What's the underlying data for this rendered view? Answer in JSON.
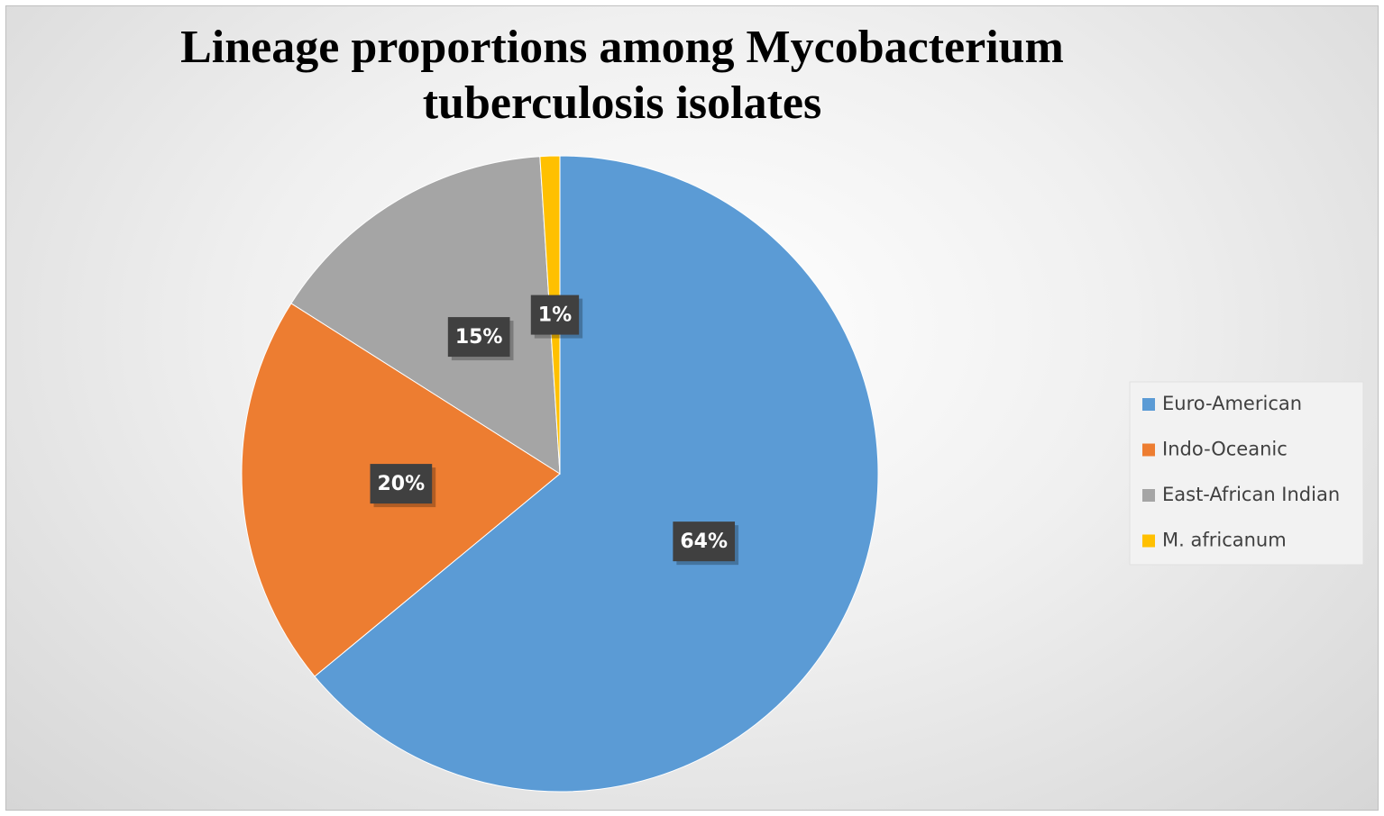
{
  "chart_data": {
    "type": "pie",
    "title": "Lineage proportions among Mycobacterium tuberculosis isolates",
    "categories": [
      "Euro-American",
      "Indo-Oceanic",
      "East-African Indian",
      "M. africanum"
    ],
    "values": [
      64,
      20,
      15,
      1
    ],
    "value_labels": [
      "64%",
      "20%",
      "15%",
      "1%"
    ],
    "colors": [
      "#5b9bd5",
      "#ed7d31",
      "#a5a5a5",
      "#ffc000"
    ],
    "legend": "right"
  }
}
